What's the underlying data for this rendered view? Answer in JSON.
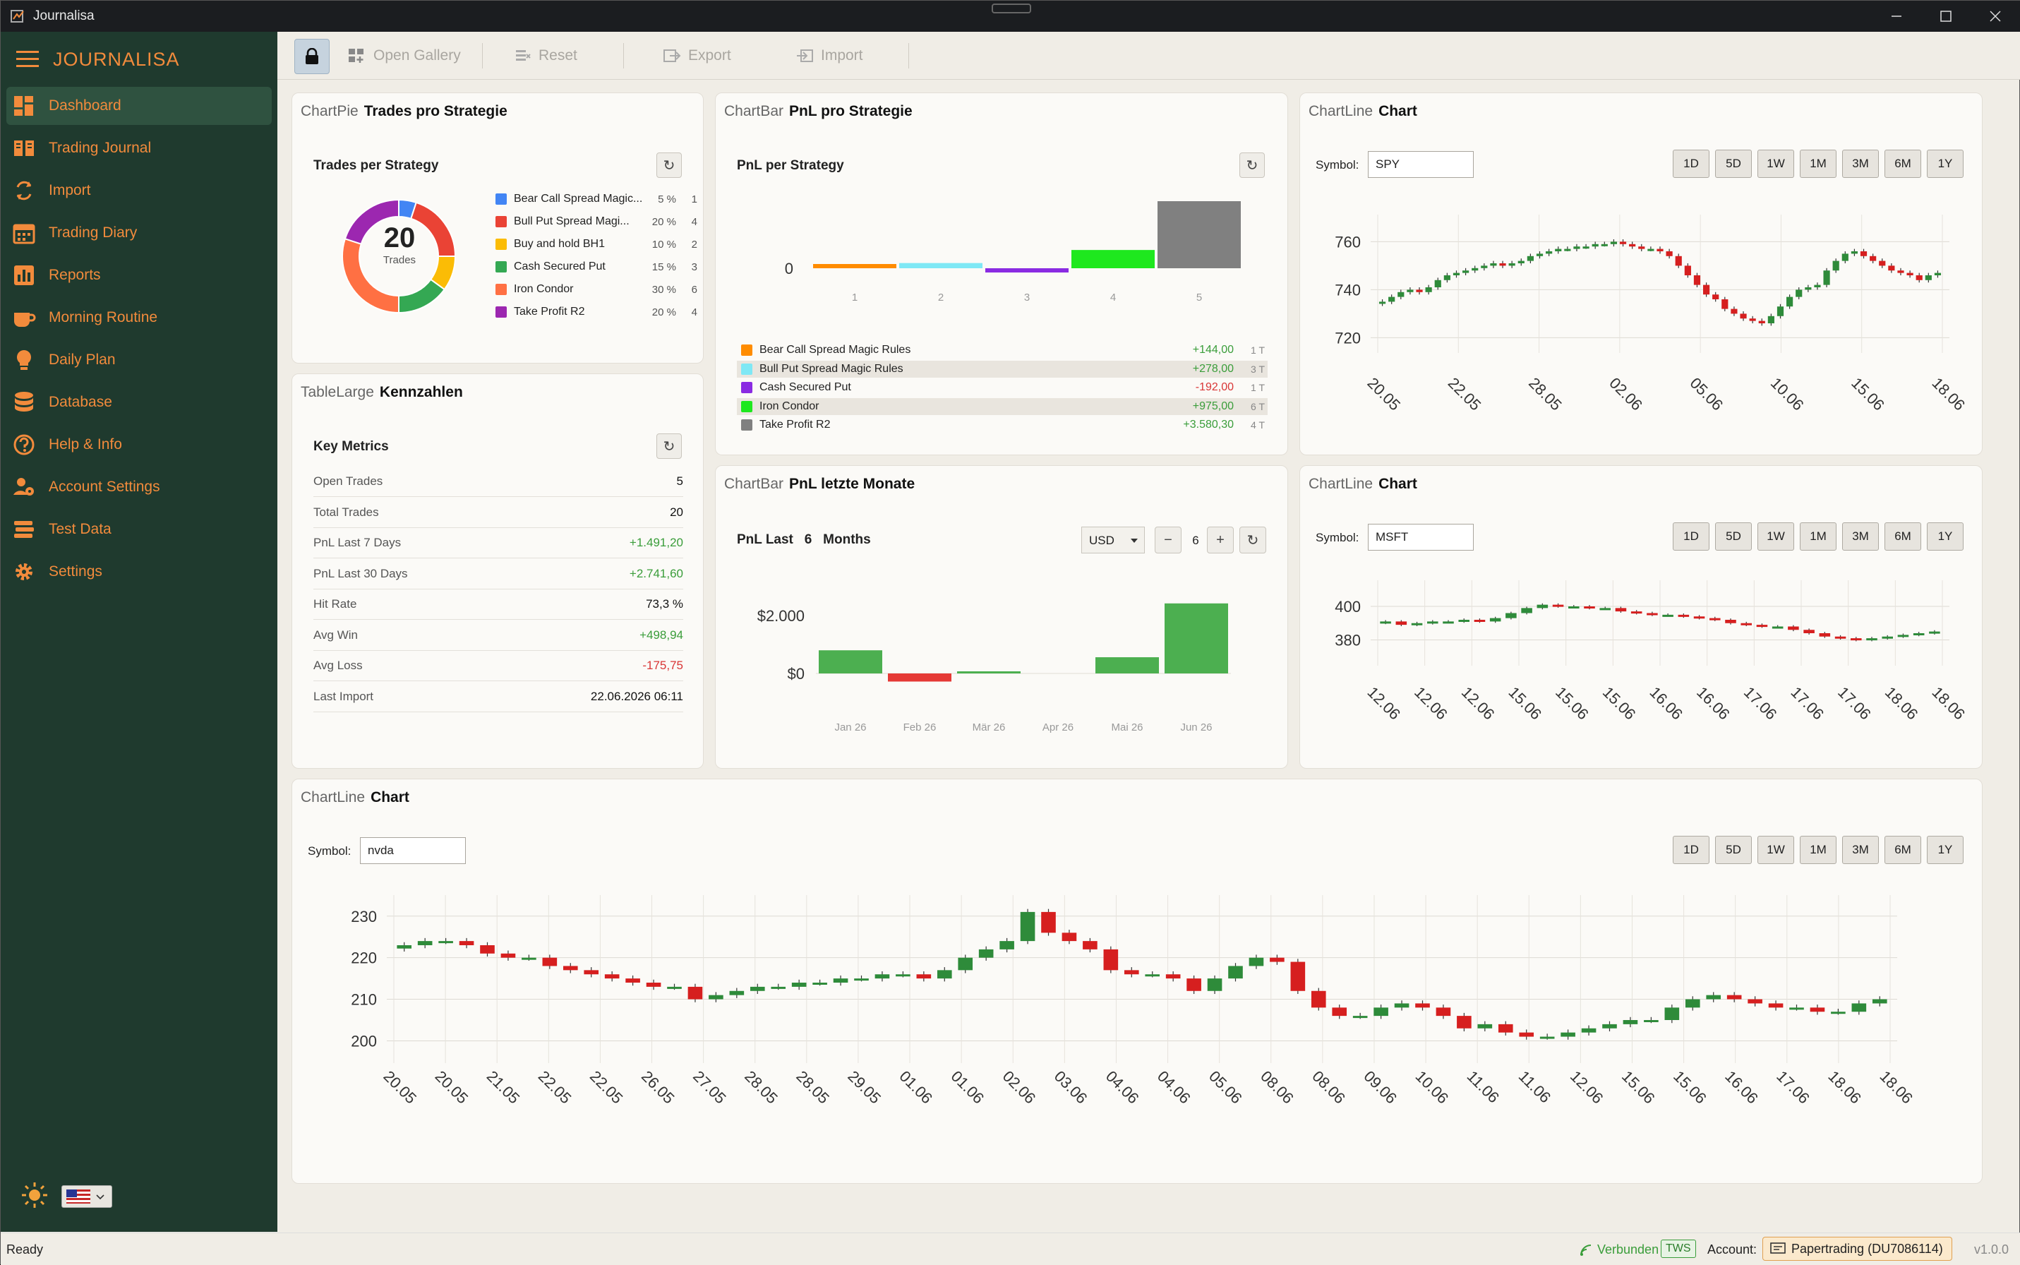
{
  "window": {
    "title": "Journalisa",
    "controls": [
      "minimize",
      "maximize",
      "close"
    ]
  },
  "sidebar": {
    "brand": "JOURNALISA",
    "items": [
      {
        "label": "Dashboard",
        "icon": "dashboard-icon",
        "active": true
      },
      {
        "label": "Trading Journal",
        "icon": "book-icon"
      },
      {
        "label": "Import",
        "icon": "sync-icon"
      },
      {
        "label": "Trading Diary",
        "icon": "calendar-icon"
      },
      {
        "label": "Reports",
        "icon": "bar-chart-icon"
      },
      {
        "label": "Morning Routine",
        "icon": "coffee-icon"
      },
      {
        "label": "Daily Plan",
        "icon": "lightbulb-icon"
      },
      {
        "label": "Database",
        "icon": "database-icon"
      },
      {
        "label": "Help & Info",
        "icon": "help-icon"
      },
      {
        "label": "Account Settings",
        "icon": "user-gear-icon"
      },
      {
        "label": "Test Data",
        "icon": "stack-icon"
      },
      {
        "label": "Settings",
        "icon": "gear-icon"
      }
    ],
    "language": "en-US"
  },
  "toolbar": {
    "gallery": "Open Gallery",
    "reset": "Reset",
    "export": "Export",
    "import": "Import"
  },
  "pie_panel": {
    "type": "ChartPie",
    "name": "Trades pro Strategie",
    "subtitle": "Trades per Strategy",
    "center_value": "20",
    "center_label": "Trades"
  },
  "bar_panel": {
    "type": "ChartBar",
    "name": "PnL pro Strategie",
    "subtitle": "PnL per Strategy"
  },
  "months_panel": {
    "type": "ChartBar",
    "name": "PnL letzte Monate",
    "subtitle_left": "PnL Last",
    "months_value": "6",
    "subtitle_right": "Months",
    "currency": "USD",
    "stepper_value": "6",
    "minus": "−",
    "plus": "+"
  },
  "metrics_panel": {
    "type": "TableLarge",
    "name": "Kennzahlen",
    "subtitle": "Key Metrics",
    "rows": [
      {
        "label": "Open Trades",
        "value": "5"
      },
      {
        "label": "Total Trades",
        "value": "20"
      },
      {
        "label": "PnL Last 7 Days",
        "value": "+1.491,20",
        "color": "#3a9d3a"
      },
      {
        "label": "PnL Last 30 Days",
        "value": "+2.741,60",
        "color": "#3a9d3a"
      },
      {
        "label": "Hit Rate",
        "value": "73,3 %"
      },
      {
        "label": "Avg Win",
        "value": "+498,94",
        "color": "#3a9d3a"
      },
      {
        "label": "Avg Loss",
        "value": "-175,75",
        "color": "#d93636"
      },
      {
        "label": "Last Import",
        "value": "22.06.2026 06:11"
      }
    ]
  },
  "line_panels": [
    {
      "type": "ChartLine",
      "name": "Chart",
      "symbol_label": "Symbol:",
      "symbol": "SPY"
    },
    {
      "type": "ChartLine",
      "name": "Chart",
      "symbol_label": "Symbol:",
      "symbol": "MSFT"
    },
    {
      "type": "ChartLine",
      "name": "Chart",
      "symbol_label": "Symbol:",
      "symbol": "nvda"
    }
  ],
  "ranges": [
    "1D",
    "5D",
    "1W",
    "1M",
    "3M",
    "6M",
    "1Y"
  ],
  "status": {
    "left": "Ready",
    "connection": "Verbunden",
    "tws": "TWS",
    "account_label": "Account:",
    "account": "Papertrading (DU7086114)",
    "version": "v1.0.0"
  },
  "chart_data": [
    {
      "type": "pie",
      "title": "Trades per Strategy",
      "slices": [
        {
          "label": "Bear Call Spread Magic...",
          "pct": "5 %",
          "count": 1,
          "color": "#4285f4"
        },
        {
          "label": "Bull Put Spread Magi...",
          "pct": "20 %",
          "count": 4,
          "color": "#ea4335"
        },
        {
          "label": "Buy and hold BH1",
          "pct": "10 %",
          "count": 2,
          "color": "#fbbc05"
        },
        {
          "label": "Cash Secured Put",
          "pct": "15 %",
          "count": 3,
          "color": "#34a853"
        },
        {
          "label": "Iron Condor",
          "pct": "30 %",
          "count": 6,
          "color": "#ff7043"
        },
        {
          "label": "Take Profit R2",
          "pct": "20 %",
          "count": 4,
          "color": "#9c27b0"
        }
      ]
    },
    {
      "type": "bar",
      "title": "PnL per Strategy",
      "categories": [
        "1",
        "2",
        "3",
        "4",
        "5"
      ],
      "ytick": "0",
      "series": [
        {
          "name": "Bear Call Spread Magic Rules",
          "value": 144.0,
          "label": "+144,00",
          "trades": "1 T",
          "color": "#ff8c00"
        },
        {
          "name": "Bull Put Spread Magic Rules",
          "value": 278.0,
          "label": "+278,00",
          "trades": "3 T",
          "color": "#7fe8f5"
        },
        {
          "name": "Cash Secured Put",
          "value": -192.0,
          "label": "-192,00",
          "trades": "1 T",
          "color": "#8a2be2"
        },
        {
          "name": "Iron Condor",
          "value": 975.0,
          "label": "+975,00",
          "trades": "6 T",
          "color": "#1ee81e"
        },
        {
          "name": "Take Profit R2",
          "value": 3580.3,
          "label": "+3.580,30",
          "trades": "4 T",
          "color": "#808080"
        }
      ]
    },
    {
      "type": "bar",
      "title": "PnL Last 6 Months",
      "categories": [
        "Jan 26",
        "Feb 26",
        "Mär 26",
        "Apr 26",
        "Mai 26",
        "Jun 26"
      ],
      "yticks": [
        "$2.000",
        "$0"
      ],
      "values": [
        800,
        -280,
        60,
        0,
        560,
        2420
      ]
    },
    {
      "type": "candlestick",
      "symbol": "SPY",
      "yticks": [
        720,
        740,
        760
      ],
      "ylim": [
        716,
        766
      ],
      "xlabels": [
        "20.05",
        "22.05",
        "28.05",
        "02.06",
        "05.06",
        "10.06",
        "15.06",
        "18.06"
      ],
      "close": [
        735,
        737,
        739,
        740,
        739,
        741,
        744,
        746,
        747,
        748,
        749,
        750,
        751,
        750,
        751,
        752,
        754,
        755,
        756,
        757,
        757,
        758,
        758,
        759,
        759,
        760,
        759,
        758,
        757,
        757,
        756,
        754,
        750,
        746,
        742,
        738,
        736,
        732,
        730,
        728,
        727,
        726,
        729,
        733,
        737,
        740,
        741,
        742,
        748,
        752,
        755,
        756,
        754,
        752,
        750,
        748,
        747,
        746,
        744,
        746,
        747
      ]
    },
    {
      "type": "candlestick",
      "symbol": "MSFT",
      "yticks": [
        380,
        400
      ],
      "ylim": [
        368,
        408
      ],
      "xlabels": [
        "12.06",
        "12.06",
        "12.06",
        "15.06",
        "15.06",
        "15.06",
        "16.06",
        "16.06",
        "17.06",
        "17.06",
        "17.06",
        "18.06",
        "18.06"
      ],
      "close": [
        391,
        389,
        390,
        391,
        391,
        392,
        391,
        393,
        396,
        399,
        401,
        400,
        400,
        399,
        399,
        397,
        396,
        395,
        395,
        394,
        393,
        392,
        390,
        389,
        388,
        388,
        386,
        384,
        382,
        381,
        380,
        381,
        382,
        383,
        384,
        385
      ]
    },
    {
      "type": "candlestick",
      "symbol": "nvda",
      "yticks": [
        200,
        210,
        220,
        230
      ],
      "ylim": [
        196,
        232
      ],
      "xlabels": [
        "20.05",
        "20.05",
        "21.05",
        "22.05",
        "22.05",
        "26.05",
        "27.05",
        "28.05",
        "28.05",
        "29.05",
        "01.06",
        "01.06",
        "02.06",
        "03.06",
        "04.06",
        "04.06",
        "05.06",
        "08.06",
        "08.06",
        "09.06",
        "10.06",
        "11.06",
        "11.06",
        "12.06",
        "15.06",
        "15.06",
        "16.06",
        "17.06",
        "18.06",
        "18.06"
      ],
      "close": [
        223,
        224,
        224,
        223,
        221,
        220,
        220,
        218,
        217,
        216,
        215,
        214,
        213,
        213,
        210,
        211,
        212,
        213,
        213,
        214,
        214,
        215,
        215,
        216,
        216,
        215,
        217,
        220,
        222,
        224,
        231,
        226,
        224,
        222,
        217,
        216,
        216,
        215,
        212,
        215,
        218,
        220,
        219,
        212,
        208,
        206,
        206,
        208,
        209,
        208,
        206,
        203,
        204,
        202,
        201,
        201,
        202,
        203,
        204,
        205,
        205,
        208,
        210,
        211,
        210,
        209,
        208,
        208,
        207,
        207,
        209,
        210
      ]
    }
  ]
}
